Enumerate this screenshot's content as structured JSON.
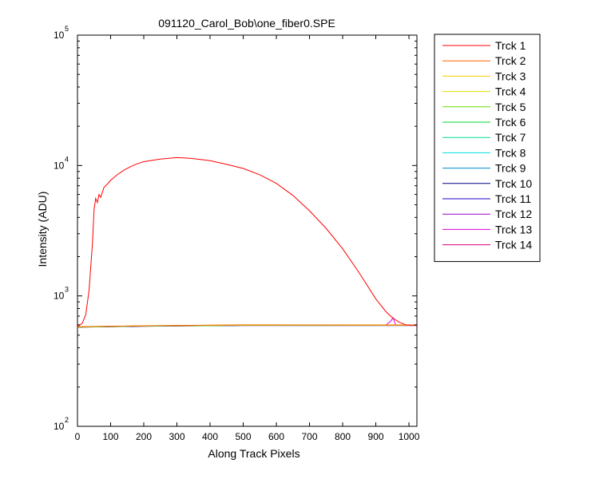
{
  "chart_data": {
    "type": "line",
    "title": "091120_Carol_Bob\\one_fiber0.SPE",
    "xlabel": "Along Track Pixels",
    "ylabel": "Intensity (ADU)",
    "xlim": [
      0,
      1024
    ],
    "ylim": [
      100,
      100000
    ],
    "yscale": "log",
    "grid": false,
    "legend_position": "outside-right",
    "x_ticks": [
      0,
      100,
      200,
      300,
      400,
      500,
      600,
      700,
      800,
      900,
      1000
    ],
    "y_ticks": [
      {
        "value": 100,
        "base": "10",
        "exp": "2"
      },
      {
        "value": 1000,
        "base": "10",
        "exp": "3"
      },
      {
        "value": 10000,
        "base": "10",
        "exp": "4"
      },
      {
        "value": 100000,
        "base": "10",
        "exp": "5"
      }
    ],
    "series": [
      {
        "name": "Trck 1",
        "color": "#ff0000",
        "x": [
          0,
          15,
          25,
          35,
          45,
          50,
          55,
          60,
          65,
          70,
          80,
          90,
          100,
          120,
          140,
          160,
          180,
          200,
          250,
          300,
          330,
          350,
          400,
          450,
          500,
          550,
          600,
          650,
          700,
          750,
          800,
          850,
          900,
          930,
          950,
          970,
          990,
          1000,
          1024
        ],
        "y": [
          580,
          620,
          720,
          1100,
          2500,
          4600,
          5600,
          5200,
          6000,
          5700,
          6800,
          7200,
          7700,
          8500,
          9200,
          9800,
          10300,
          10700,
          11200,
          11500,
          11400,
          11300,
          10900,
          10200,
          9500,
          8500,
          7300,
          5900,
          4500,
          3300,
          2300,
          1500,
          950,
          760,
          680,
          630,
          600,
          598,
          595
        ]
      },
      {
        "name": "Trck 2",
        "color": "#ff6600",
        "x": [
          0,
          200,
          500,
          1024
        ],
        "y": [
          580,
          590,
          600,
          598
        ]
      },
      {
        "name": "Trck 3",
        "color": "#ffcc00",
        "x": [
          0,
          200,
          500,
          1024
        ],
        "y": [
          580,
          590,
          598,
          597
        ]
      },
      {
        "name": "Trck 4",
        "color": "#dddd00",
        "x": [
          0,
          200,
          500,
          1024
        ],
        "y": [
          580,
          590,
          598,
          597
        ]
      },
      {
        "name": "Trck 5",
        "color": "#66dd00",
        "x": [
          0,
          200,
          500,
          1024
        ],
        "y": [
          578,
          588,
          596,
          596
        ]
      },
      {
        "name": "Trck 6",
        "color": "#00dd33",
        "x": [
          0,
          200,
          500,
          1024
        ],
        "y": [
          578,
          588,
          596,
          596
        ]
      },
      {
        "name": "Trck 7",
        "color": "#00dd99",
        "x": [
          0,
          200,
          500,
          1024
        ],
        "y": [
          578,
          588,
          596,
          596
        ]
      },
      {
        "name": "Trck 8",
        "color": "#00dddd",
        "x": [
          0,
          200,
          500,
          1024
        ],
        "y": [
          578,
          588,
          596,
          596
        ]
      },
      {
        "name": "Trck 9",
        "color": "#0088cc",
        "x": [
          0,
          200,
          500,
          1024
        ],
        "y": [
          578,
          588,
          595,
          595
        ]
      },
      {
        "name": "Trck 10",
        "color": "#000080",
        "x": [
          0,
          200,
          500,
          1024
        ],
        "y": [
          576,
          586,
          594,
          594
        ]
      },
      {
        "name": "Trck 11",
        "color": "#2200cc",
        "x": [
          0,
          200,
          500,
          1024
        ],
        "y": [
          576,
          586,
          594,
          594
        ]
      },
      {
        "name": "Trck 12",
        "color": "#9900cc",
        "x": [
          0,
          200,
          500,
          1024
        ],
        "y": [
          578,
          588,
          596,
          596
        ]
      },
      {
        "name": "Trck 13",
        "color": "#dd00dd",
        "x": [
          0,
          200,
          500,
          930,
          945,
          952,
          960,
          1024
        ],
        "y": [
          578,
          588,
          596,
          596,
          640,
          680,
          600,
          596
        ]
      },
      {
        "name": "Trck 14",
        "color": "#dd0077",
        "x": [
          0,
          200,
          500,
          1024
        ],
        "y": [
          578,
          588,
          596,
          596
        ]
      }
    ]
  }
}
